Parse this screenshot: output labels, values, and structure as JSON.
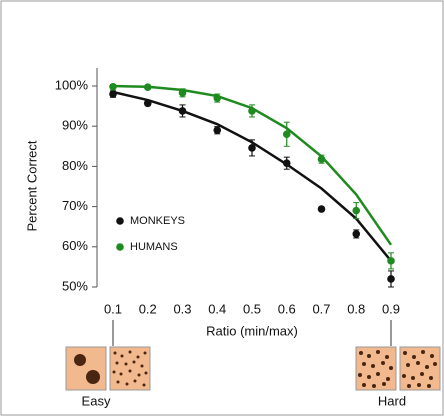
{
  "chart_data": {
    "type": "scatter",
    "y_label": "Percent Correct",
    "x_label": "Ratio (min/max)",
    "x": [
      0.1,
      0.2,
      0.3,
      0.4,
      0.5,
      0.6,
      0.7,
      0.8,
      0.9
    ],
    "series": [
      {
        "name": "MONKEYS",
        "color": "#111111",
        "values": [
          98.0,
          95.7,
          93.8,
          89.0,
          84.6,
          80.8,
          69.4,
          63.2,
          52.0
        ],
        "errors": [
          0.8,
          0.6,
          1.5,
          0.9,
          2.0,
          1.5,
          0.5,
          1.0,
          2.0
        ],
        "fit": [
          98.5,
          96.5,
          93.8,
          90.5,
          86.0,
          80.5,
          74.5,
          67.0,
          56.5
        ]
      },
      {
        "name": "HUMANS",
        "color": "#1f8a1f",
        "values": [
          99.8,
          99.7,
          98.3,
          97.0,
          93.8,
          88.0,
          81.8,
          69.0,
          56.5
        ],
        "errors": [
          0.5,
          0.4,
          1.0,
          1.0,
          1.5,
          3.0,
          1.0,
          2.0,
          2.0
        ],
        "fit": [
          100.0,
          99.8,
          99.0,
          97.5,
          94.5,
          89.5,
          82.5,
          73.0,
          60.5
        ]
      }
    ],
    "ylim": [
      50,
      100
    ],
    "yticks": [
      {
        "value": 50,
        "label": "50%"
      },
      {
        "value": 60,
        "label": "60%"
      },
      {
        "value": 70,
        "label": "70%"
      },
      {
        "value": 80,
        "label": "80%"
      },
      {
        "value": 90,
        "label": "90%"
      },
      {
        "value": 100,
        "label": "100%"
      }
    ],
    "xlim": [
      0.1,
      0.9
    ],
    "xticks": [
      0.1,
      0.2,
      0.3,
      0.4,
      0.5,
      0.6,
      0.7,
      0.8,
      0.9
    ],
    "legend": "lower left",
    "annotations": [
      "Easy",
      "Hard"
    ]
  }
}
